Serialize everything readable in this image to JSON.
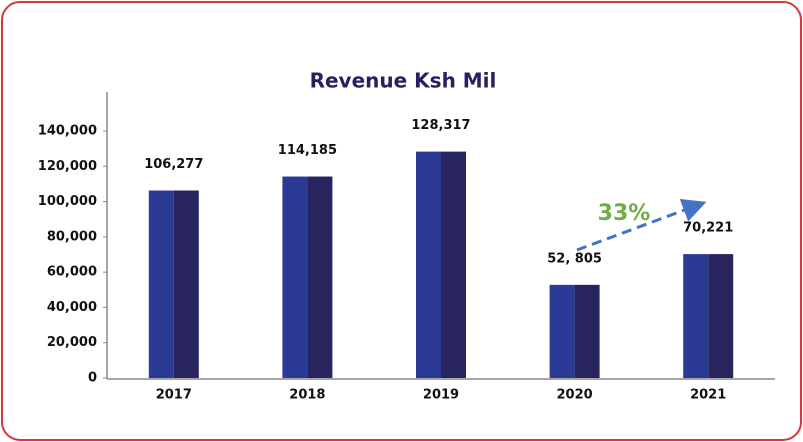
{
  "chart_data": {
    "type": "bar",
    "title": "Revenue Ksh Mil",
    "categories": [
      "2017",
      "2018",
      "2019",
      "2020",
      "2021"
    ],
    "values": [
      106277,
      114185,
      128317,
      52805,
      70221
    ],
    "value_labels": [
      "106,277",
      "114,185",
      "128,317",
      "52, 805",
      "70,221"
    ],
    "colors": [
      "#2b3a94",
      "#27245e"
    ],
    "ylim": [
      0,
      140000
    ],
    "yticks": [
      0,
      {
        "value": 20000,
        "label": "20,000"
      },
      {
        "value": 40000,
        "label": "40,000"
      },
      {
        "value": 60000,
        "label": "60,000"
      },
      {
        "value": 80000,
        "label": "80,000"
      },
      {
        "value": 100000,
        "label": "100,000"
      },
      {
        "value": 120000,
        "label": "120,000"
      },
      {
        "value": 140000,
        "label": "140,000"
      }
    ],
    "annotation": "33%"
  }
}
